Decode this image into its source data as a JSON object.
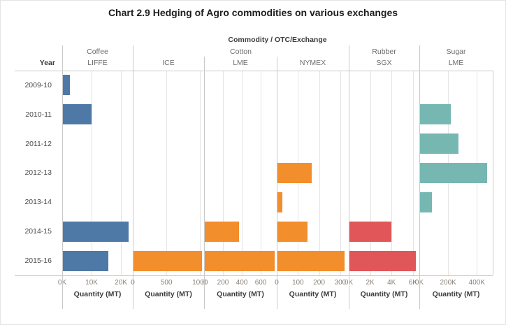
{
  "title": "Chart 2.9 Hedging of Agro commodities on various exchanges",
  "chart_data": {
    "type": "bar",
    "orientation": "horizontal",
    "title": "Chart 2.9 Hedging of Agro commodities on various exchanges",
    "column_axis_title": "Commodity / OTC/Exchange",
    "row_axis_title": "Year",
    "categories": [
      "2009-10",
      "2010-11",
      "2011-12",
      "2012-13",
      "2013-14",
      "2014-15",
      "2015-16"
    ],
    "groups": [
      {
        "label": "Coffee",
        "span": 1
      },
      {
        "label": "Cotton",
        "span": 3
      },
      {
        "label": "Rubber",
        "span": 1
      },
      {
        "label": "Sugar",
        "span": 1
      }
    ],
    "panels": [
      {
        "commodity": "Coffee",
        "exchange": "LIFFE",
        "color": "#4e79a7",
        "xlabel": "Quantity (MT)",
        "xmax": 24000,
        "ticks": [
          {
            "label": "0K",
            "value": 0
          },
          {
            "label": "10K",
            "value": 10000
          },
          {
            "label": "20K",
            "value": 20000
          }
        ],
        "values": [
          2500,
          10000,
          0,
          0,
          0,
          22600,
          15700
        ]
      },
      {
        "commodity": "Cotton",
        "exchange": "ICE",
        "color": "#f28e2b",
        "xlabel": "Quantity (MT)",
        "xmax": 1060,
        "ticks": [
          {
            "label": "0",
            "value": 0
          },
          {
            "label": "500",
            "value": 500
          },
          {
            "label": "1000",
            "value": 1000
          }
        ],
        "values": [
          0,
          0,
          0,
          0,
          0,
          0,
          1030
        ]
      },
      {
        "commodity": "Cotton",
        "exchange": "LME",
        "color": "#f28e2b",
        "xlabel": "Quantity (MT)",
        "xmax": 770,
        "ticks": [
          {
            "label": "0",
            "value": 0
          },
          {
            "label": "200",
            "value": 200
          },
          {
            "label": "400",
            "value": 400
          },
          {
            "label": "600",
            "value": 600
          }
        ],
        "values": [
          0,
          0,
          0,
          0,
          0,
          370,
          750
        ]
      },
      {
        "commodity": "Cotton",
        "exchange": "NYMEX",
        "color": "#f28e2b",
        "xlabel": "Quantity (MT)",
        "xmax": 340,
        "ticks": [
          {
            "label": "0",
            "value": 0
          },
          {
            "label": "100",
            "value": 100
          },
          {
            "label": "200",
            "value": 200
          },
          {
            "label": "300",
            "value": 300
          }
        ],
        "values": [
          0,
          0,
          0,
          165,
          25,
          145,
          320
        ]
      },
      {
        "commodity": "Rubber",
        "exchange": "SGX",
        "color": "#e15759",
        "xlabel": "Quantity (MT)",
        "xmax": 6600,
        "ticks": [
          {
            "label": "0K",
            "value": 0
          },
          {
            "label": "2K",
            "value": 2000
          },
          {
            "label": "4K",
            "value": 4000
          },
          {
            "label": "6K",
            "value": 6000
          }
        ],
        "values": [
          0,
          0,
          0,
          0,
          0,
          4000,
          6300
        ]
      },
      {
        "commodity": "Sugar",
        "exchange": "LME",
        "color": "#76b7b2",
        "xlabel": "Quantity (MT)",
        "xmax": 510000,
        "ticks": [
          {
            "label": "0K",
            "value": 0
          },
          {
            "label": "200K",
            "value": 200000
          },
          {
            "label": "400K",
            "value": 400000
          }
        ],
        "values": [
          0,
          220000,
          270000,
          470000,
          85000,
          0,
          0
        ]
      }
    ]
  }
}
